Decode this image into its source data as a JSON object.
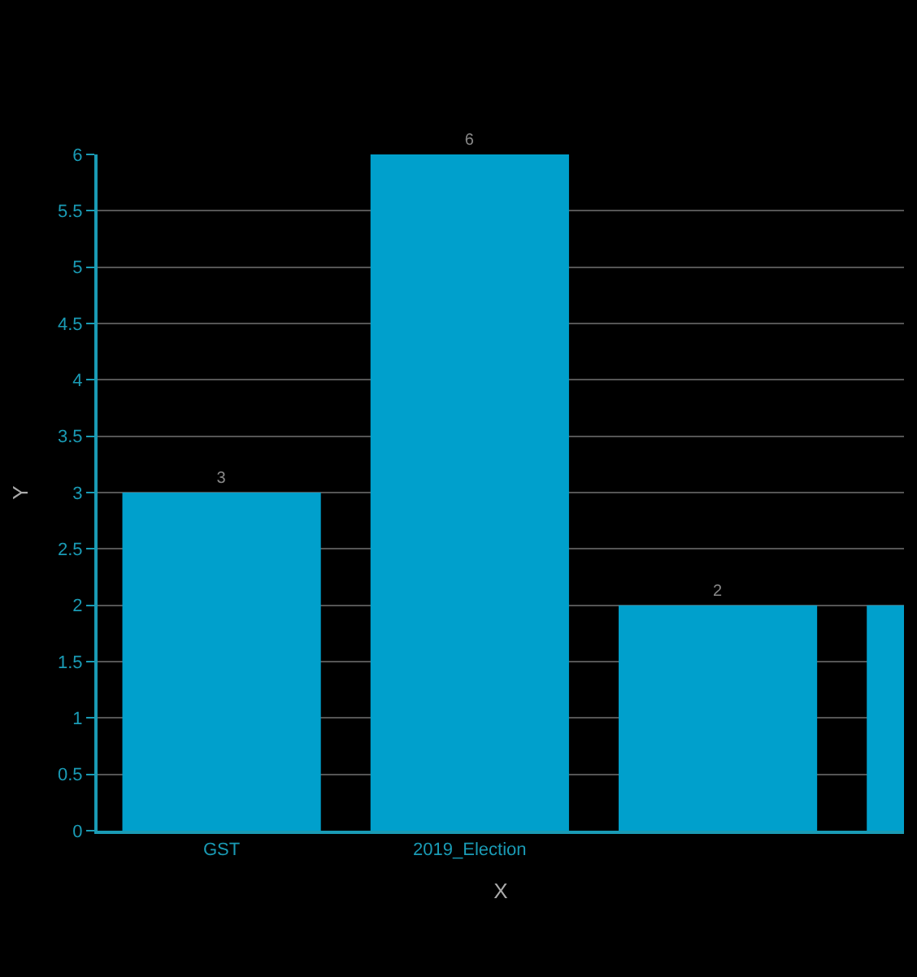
{
  "chart_data": {
    "type": "bar",
    "xlabel": "X",
    "ylabel": "Y",
    "categories": [
      "GST",
      "2019_Election",
      null,
      null
    ],
    "values": [
      3,
      6,
      2,
      2
    ],
    "value_labels": [
      "3",
      "6",
      "2",
      null
    ],
    "color": "#00a0cc",
    "ylim": [
      0,
      6
    ],
    "yticks": [
      0,
      0.5,
      1,
      1.5,
      2,
      2.5,
      3,
      3.5,
      4,
      4.5,
      5,
      5.5,
      6
    ],
    "grid": "y",
    "legend": false
  }
}
